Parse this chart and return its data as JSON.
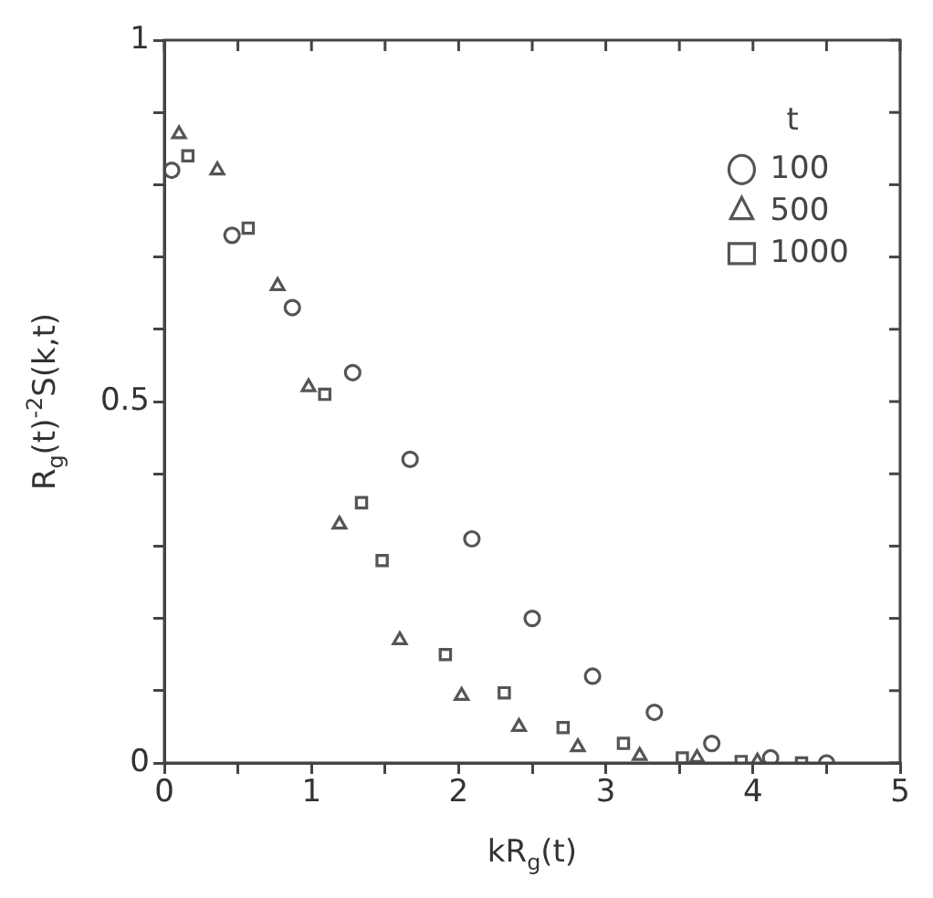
{
  "chart_data": {
    "type": "scatter",
    "xlabel": "kR$_{g}$(t)",
    "ylabel": "R$_{g}$(t)$^{-2}$S(k,t)",
    "legend_title": "t",
    "legend": "top right",
    "grid": false,
    "xlim": [
      0,
      5
    ],
    "xticks": [
      0,
      {
        "value": 0.5,
        "label": null
      },
      1,
      {
        "value": 1.5,
        "label": null
      },
      2,
      {
        "value": 2.5,
        "label": null
      },
      3,
      {
        "value": 3.5,
        "label": null
      },
      4,
      {
        "value": 4.5,
        "label": null
      },
      5
    ],
    "ylim": [
      0,
      1
    ],
    "yticks": [
      0,
      {
        "value": 0.1,
        "label": null
      },
      {
        "value": 0.2,
        "label": null
      },
      {
        "value": 0.3,
        "label": null
      },
      {
        "value": 0.4,
        "label": null
      },
      0.5,
      {
        "value": 0.6,
        "label": null
      },
      {
        "value": 0.7,
        "label": null
      },
      {
        "value": 0.8,
        "label": null
      },
      {
        "value": 0.9,
        "label": null
      },
      1
    ],
    "series": [
      {
        "name": "100",
        "color": "#555555",
        "marker": "circle",
        "x": [
          0.05,
          0.46,
          0.87,
          1.28,
          1.67,
          2.09,
          2.5,
          2.91,
          3.33,
          3.72,
          4.12,
          4.5
        ],
        "values": [
          0.82,
          0.73,
          0.63,
          0.54,
          0.42,
          0.31,
          0.2,
          0.12,
          0.07,
          0.027,
          0.007,
          0
        ]
      },
      {
        "name": "500",
        "color": "#555555",
        "marker": "triangle",
        "x": [
          0.1,
          0.36,
          0.77,
          0.98,
          1.19,
          1.6,
          2.02,
          2.41,
          2.81,
          3.23,
          3.62,
          4.03
        ],
        "values": [
          0.87,
          0.82,
          0.66,
          0.52,
          0.33,
          0.17,
          0.093,
          0.05,
          0.022,
          0.01,
          0.007,
          0.002
        ]
      },
      {
        "name": "1000",
        "color": "#555555",
        "marker": "square",
        "x": [
          0.16,
          0.57,
          1.09,
          1.34,
          1.48,
          1.91,
          2.31,
          2.71,
          3.12,
          3.52,
          3.92,
          4.33
        ],
        "values": [
          0.84,
          0.74,
          0.51,
          0.36,
          0.28,
          0.15,
          0.097,
          0.049,
          0.027,
          0.007,
          0.002,
          0
        ]
      }
    ]
  }
}
